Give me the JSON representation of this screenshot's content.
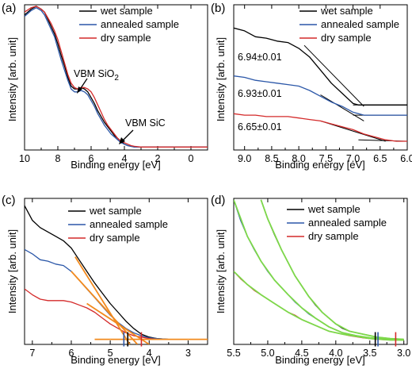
{
  "figure": {
    "panels": [
      {
        "id": "a",
        "panel_label": "(a)",
        "xlabel": "Binding energy [eV]",
        "ylabel": "Intensity [arb. unit]",
        "annotations": [
          {
            "text": "VBM SiO",
            "sub": "2",
            "x": 6.6,
            "y": 0.66
          },
          {
            "text": "VBM SiC",
            "x": 3.5,
            "y": 0.07
          }
        ]
      },
      {
        "id": "b",
        "panel_label": "(b)",
        "xlabel": "Binding energy [eV]",
        "ylabel": "Intensity [arb. unit]",
        "annotations": [
          {
            "text": "6.94±0.01",
            "x": 8.7,
            "y": 0.62
          },
          {
            "text": "6.93±0.01",
            "x": 8.6,
            "y": 0.35
          },
          {
            "text": "6.65±0.01",
            "x": 8.6,
            "y": 0.17
          }
        ]
      },
      {
        "id": "c",
        "panel_label": "(c)",
        "xlabel": "Binding energy [eV]",
        "ylabel": "Intensity [arb. unit]"
      },
      {
        "id": "d",
        "panel_label": "(d)",
        "xlabel": "Binding energy [eV]",
        "ylabel": "Intensity [arb. unit]"
      }
    ]
  },
  "chart_data": [
    {
      "type": "line",
      "panel": "a",
      "xlim": [
        10,
        -1
      ],
      "ylim": [
        0,
        1
      ],
      "x_ticks": [
        10,
        8,
        6,
        4,
        2,
        0
      ],
      "y_ticks": [],
      "grid": false,
      "legend": {
        "placement": "top-right"
      },
      "series": [
        {
          "name": "wet sample",
          "color": "#000000",
          "x": [
            10.0,
            9.6,
            9.3,
            9.0,
            8.8,
            8.6,
            8.4,
            8.2,
            8.0,
            7.8,
            7.6,
            7.4,
            7.2,
            7.0,
            6.8,
            6.6,
            6.4,
            6.2,
            6.0,
            5.8,
            5.6,
            5.4,
            5.2,
            5.0,
            4.8,
            4.6,
            4.4,
            4.2,
            4.0,
            3.8,
            3.6,
            3.4,
            3.0,
            2.0,
            1.0,
            0.0,
            -1.0
          ],
          "y": [
            0.93,
            0.97,
            0.99,
            0.97,
            0.95,
            0.9,
            0.85,
            0.8,
            0.73,
            0.65,
            0.58,
            0.5,
            0.44,
            0.42,
            0.42,
            0.43,
            0.42,
            0.4,
            0.36,
            0.32,
            0.27,
            0.23,
            0.19,
            0.16,
            0.13,
            0.1,
            0.08,
            0.06,
            0.04,
            0.03,
            0.025,
            0.02,
            0.02,
            0.02,
            0.02,
            0.02,
            0.02
          ]
        },
        {
          "name": "annealed sample",
          "color": "#2b57a8",
          "x": [
            10.0,
            9.6,
            9.3,
            9.0,
            8.8,
            8.6,
            8.4,
            8.2,
            8.0,
            7.8,
            7.6,
            7.4,
            7.2,
            7.0,
            6.8,
            6.6,
            6.4,
            6.2,
            6.0,
            5.8,
            5.6,
            5.4,
            5.2,
            5.0,
            4.8,
            4.6,
            4.4,
            4.2,
            4.0,
            3.8,
            3.6,
            3.4,
            3.0,
            2.0,
            1.0,
            0.0,
            -1.0
          ],
          "y": [
            0.92,
            0.96,
            0.98,
            0.96,
            0.93,
            0.88,
            0.83,
            0.78,
            0.7,
            0.62,
            0.55,
            0.48,
            0.42,
            0.4,
            0.4,
            0.41,
            0.4,
            0.38,
            0.34,
            0.3,
            0.25,
            0.21,
            0.17,
            0.14,
            0.11,
            0.09,
            0.07,
            0.05,
            0.04,
            0.03,
            0.025,
            0.02,
            0.02,
            0.02,
            0.02,
            0.02,
            0.02
          ]
        },
        {
          "name": "dry sample",
          "color": "#d42a2a",
          "x": [
            10.0,
            9.6,
            9.3,
            9.0,
            8.8,
            8.6,
            8.4,
            8.2,
            8.0,
            7.8,
            7.6,
            7.4,
            7.2,
            7.0,
            6.8,
            6.6,
            6.4,
            6.2,
            6.0,
            5.8,
            5.6,
            5.4,
            5.2,
            5.0,
            4.8,
            4.6,
            4.4,
            4.2,
            4.0,
            3.8,
            3.6,
            3.4,
            3.0,
            2.0,
            1.0,
            0.0,
            -1.0
          ],
          "y": [
            0.95,
            0.98,
            0.99,
            0.97,
            0.95,
            0.91,
            0.87,
            0.82,
            0.76,
            0.68,
            0.6,
            0.52,
            0.46,
            0.43,
            0.42,
            0.43,
            0.43,
            0.42,
            0.4,
            0.36,
            0.31,
            0.26,
            0.21,
            0.17,
            0.14,
            0.11,
            0.08,
            0.06,
            0.05,
            0.04,
            0.03,
            0.025,
            0.02,
            0.02,
            0.02,
            0.02,
            0.02
          ]
        }
      ]
    },
    {
      "type": "line",
      "panel": "b",
      "xlim": [
        9.2,
        6.0
      ],
      "ylim": [
        0,
        1
      ],
      "x_ticks": [
        9.0,
        8.5,
        8.0,
        7.5,
        7.0,
        6.5,
        6.0
      ],
      "y_ticks": [],
      "grid": false,
      "legend": {
        "placement": "top-right"
      },
      "series": [
        {
          "name": "wet sample",
          "color": "#000000",
          "x": [
            9.2,
            9.0,
            8.8,
            8.6,
            8.4,
            8.2,
            8.0,
            7.8,
            7.6,
            7.4,
            7.2,
            7.0,
            6.9,
            6.8,
            6.6,
            6.4,
            6.2,
            6.0
          ],
          "y": [
            0.84,
            0.82,
            0.78,
            0.77,
            0.75,
            0.74,
            0.7,
            0.64,
            0.55,
            0.46,
            0.39,
            0.32,
            0.31,
            0.31,
            0.31,
            0.31,
            0.31,
            0.31
          ]
        },
        {
          "name": "annealed sample",
          "color": "#2b57a8",
          "x": [
            9.2,
            9.0,
            8.8,
            8.6,
            8.4,
            8.2,
            8.0,
            7.8,
            7.6,
            7.4,
            7.2,
            7.0,
            6.9,
            6.8,
            6.6,
            6.4,
            6.2,
            6.0
          ],
          "y": [
            0.51,
            0.5,
            0.48,
            0.47,
            0.46,
            0.45,
            0.44,
            0.41,
            0.37,
            0.33,
            0.3,
            0.26,
            0.25,
            0.24,
            0.24,
            0.24,
            0.24,
            0.24
          ]
        },
        {
          "name": "dry sample",
          "color": "#d42a2a",
          "x": [
            9.2,
            9.0,
            8.8,
            8.6,
            8.4,
            8.2,
            8.0,
            7.8,
            7.6,
            7.4,
            7.2,
            7.0,
            6.8,
            6.6,
            6.4,
            6.2,
            6.0
          ],
          "y": [
            0.25,
            0.24,
            0.24,
            0.23,
            0.23,
            0.23,
            0.22,
            0.21,
            0.2,
            0.18,
            0.16,
            0.14,
            0.11,
            0.09,
            0.07,
            0.06,
            0.06
          ]
        }
      ],
      "fit_lines": [
        {
          "color": "#000000",
          "x": [
            7.9,
            6.8
          ],
          "y": [
            0.72,
            0.3
          ]
        },
        {
          "color": "#000000",
          "x": [
            7.0,
            6.0
          ],
          "y": [
            0.31,
            0.31
          ]
        },
        {
          "color": "#000000",
          "x": [
            7.6,
            6.8
          ],
          "y": [
            0.38,
            0.2
          ]
        },
        {
          "color": "#000000",
          "x": [
            7.0,
            6.0
          ],
          "y": [
            0.24,
            0.24
          ]
        },
        {
          "color": "#000000",
          "x": [
            7.6,
            6.4
          ],
          "y": [
            0.2,
            0.06
          ]
        },
        {
          "color": "#000000",
          "x": [
            6.9,
            6.0
          ],
          "y": [
            0.07,
            0.06
          ]
        }
      ]
    },
    {
      "type": "line",
      "panel": "c",
      "xlim": [
        7.2,
        2.5
      ],
      "ylim": [
        0,
        1
      ],
      "x_ticks": [
        7,
        6,
        5,
        4,
        3
      ],
      "y_ticks": [],
      "grid": false,
      "legend": {
        "placement": "top-right"
      },
      "series": [
        {
          "name": "wet sample",
          "color": "#000000",
          "x": [
            7.2,
            7.0,
            6.8,
            6.6,
            6.4,
            6.2,
            6.0,
            5.8,
            5.6,
            5.4,
            5.2,
            5.0,
            4.8,
            4.6,
            4.4,
            4.2,
            4.0,
            3.8,
            3.5,
            3.0,
            2.5
          ],
          "y": [
            0.95,
            0.85,
            0.8,
            0.77,
            0.74,
            0.71,
            0.66,
            0.58,
            0.5,
            0.42,
            0.35,
            0.28,
            0.22,
            0.16,
            0.11,
            0.07,
            0.05,
            0.04,
            0.035,
            0.035,
            0.035
          ]
        },
        {
          "name": "annealed sample",
          "color": "#2b57a8",
          "x": [
            7.2,
            7.0,
            6.8,
            6.6,
            6.4,
            6.2,
            6.0,
            5.8,
            5.6,
            5.4,
            5.2,
            5.0,
            4.8,
            4.6,
            4.4,
            4.2,
            4.0,
            3.8,
            3.5,
            3.0,
            2.5
          ],
          "y": [
            0.65,
            0.62,
            0.58,
            0.57,
            0.55,
            0.54,
            0.5,
            0.44,
            0.38,
            0.32,
            0.26,
            0.2,
            0.15,
            0.11,
            0.08,
            0.06,
            0.045,
            0.04,
            0.035,
            0.035,
            0.035
          ]
        },
        {
          "name": "dry sample",
          "color": "#d42a2a",
          "x": [
            7.2,
            7.0,
            6.8,
            6.6,
            6.4,
            6.2,
            6.0,
            5.8,
            5.6,
            5.4,
            5.2,
            5.0,
            4.8,
            4.6,
            4.4,
            4.2,
            4.0,
            3.8,
            3.5,
            3.0,
            2.5
          ],
          "y": [
            0.38,
            0.34,
            0.31,
            0.3,
            0.3,
            0.3,
            0.29,
            0.27,
            0.25,
            0.22,
            0.18,
            0.14,
            0.11,
            0.08,
            0.06,
            0.05,
            0.04,
            0.035,
            0.035,
            0.035,
            0.035
          ]
        }
      ],
      "fit_lines": [
        {
          "color": "#f28a1e",
          "x": [
            5.9,
            4.5
          ],
          "y": [
            0.6,
            0.0
          ]
        },
        {
          "color": "#f28a1e",
          "x": [
            6.0,
            4.3
          ],
          "y": [
            0.5,
            0.0
          ]
        },
        {
          "color": "#f28a1e",
          "x": [
            5.6,
            4.0
          ],
          "y": [
            0.28,
            0.0
          ]
        },
        {
          "color": "#f28a1e",
          "x": [
            5.4,
            2.5
          ],
          "y": [
            0.035,
            0.035
          ]
        }
      ],
      "markers": [
        {
          "color": "#2b57a8",
          "x": 4.65
        },
        {
          "color": "#000000",
          "x": 4.55
        },
        {
          "color": "#d42a2a",
          "x": 4.2
        }
      ]
    },
    {
      "type": "line",
      "panel": "d",
      "xlim": [
        5.5,
        2.95
      ],
      "ylim": [
        0,
        1
      ],
      "x_ticks": [
        5.5,
        5.0,
        4.5,
        4.0,
        3.5,
        3.0
      ],
      "y_ticks": [],
      "grid": false,
      "legend": {
        "placement": "top-right"
      },
      "series": [
        {
          "name": "wet sample",
          "color": "#000000",
          "x": [
            5.1,
            5.0,
            4.9,
            4.8,
            4.7,
            4.6,
            4.5,
            4.4,
            4.3,
            4.2,
            4.1,
            4.0,
            3.9,
            3.8,
            3.6,
            3.4,
            3.2,
            3.0
          ],
          "y": [
            0.99,
            0.86,
            0.75,
            0.65,
            0.56,
            0.47,
            0.4,
            0.33,
            0.27,
            0.22,
            0.18,
            0.14,
            0.11,
            0.09,
            0.07,
            0.05,
            0.04,
            0.035
          ]
        },
        {
          "name": "annealed sample",
          "color": "#2b57a8",
          "x": [
            5.5,
            5.4,
            5.3,
            5.2,
            5.1,
            5.0,
            4.9,
            4.8,
            4.7,
            4.6,
            4.5,
            4.4,
            4.3,
            4.2,
            4.1,
            4.0,
            3.9,
            3.8,
            3.6,
            3.4,
            3.2,
            3.0
          ],
          "y": [
            0.99,
            0.85,
            0.74,
            0.65,
            0.57,
            0.5,
            0.44,
            0.39,
            0.34,
            0.29,
            0.25,
            0.21,
            0.18,
            0.15,
            0.12,
            0.1,
            0.08,
            0.07,
            0.05,
            0.04,
            0.035,
            0.03
          ]
        },
        {
          "name": "dry sample",
          "color": "#d42a2a",
          "x": [
            5.5,
            5.4,
            5.3,
            5.2,
            5.1,
            5.0,
            4.9,
            4.8,
            4.7,
            4.6,
            4.5,
            4.4,
            4.3,
            4.2,
            4.1,
            4.0,
            3.9,
            3.8,
            3.6,
            3.4,
            3.2,
            3.0
          ],
          "y": [
            0.5,
            0.45,
            0.41,
            0.37,
            0.34,
            0.31,
            0.28,
            0.25,
            0.22,
            0.2,
            0.17,
            0.15,
            0.13,
            0.11,
            0.09,
            0.08,
            0.07,
            0.06,
            0.045,
            0.035,
            0.03,
            0.03
          ]
        }
      ],
      "fit_lines": [
        {
          "color": "#7dd84a",
          "x": [
            5.1,
            5.0,
            4.8,
            4.6,
            4.4,
            4.2,
            4.0,
            3.8,
            3.6,
            3.4,
            3.2,
            3.0
          ],
          "y": [
            0.99,
            0.86,
            0.65,
            0.47,
            0.33,
            0.22,
            0.14,
            0.09,
            0.07,
            0.05,
            0.04,
            0.035
          ]
        },
        {
          "color": "#7dd84a",
          "x": [
            5.5,
            5.3,
            5.1,
            4.9,
            4.7,
            4.5,
            4.3,
            4.1,
            3.9,
            3.7,
            3.5,
            3.2,
            3.0
          ],
          "y": [
            0.99,
            0.74,
            0.57,
            0.44,
            0.34,
            0.25,
            0.18,
            0.12,
            0.08,
            0.06,
            0.045,
            0.035,
            0.03
          ]
        },
        {
          "color": "#7dd84a",
          "x": [
            5.5,
            5.3,
            5.1,
            4.9,
            4.7,
            4.5,
            4.3,
            4.1,
            3.9,
            3.7,
            3.5,
            3.2,
            3.0
          ],
          "y": [
            0.5,
            0.41,
            0.34,
            0.28,
            0.22,
            0.17,
            0.13,
            0.09,
            0.07,
            0.055,
            0.04,
            0.03,
            0.03
          ]
        }
      ],
      "markers": [
        {
          "color": "#000000",
          "x": 3.42
        },
        {
          "color": "#2b57a8",
          "x": 3.38
        },
        {
          "color": "#d42a2a",
          "x": 3.12
        }
      ]
    }
  ]
}
